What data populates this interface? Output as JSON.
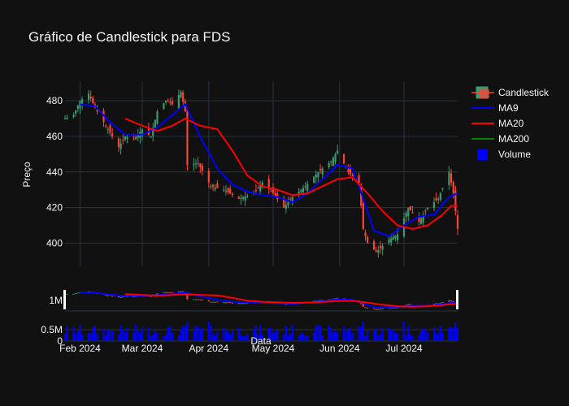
{
  "chart_data": {
    "type": "candlestick",
    "title": "Gráfico de Candlestick para FDS",
    "xlabel": "Data",
    "ylabel": "Preço",
    "ylim": [
      387,
      491
    ],
    "yticks": [
      400,
      420,
      440,
      460,
      480
    ],
    "xticks": [
      "Feb 2024",
      "Mar 2024",
      "Apr 2024",
      "May 2024",
      "Jun 2024",
      "Jul 2024"
    ],
    "x_range": [
      "2024-01-25",
      "2024-07-26"
    ],
    "volume_yticks": [
      "0",
      "0.5M",
      "1M"
    ],
    "legend": [
      "Candlestick",
      "MA9",
      "MA20",
      "MA200",
      "Volume"
    ],
    "legend_position": "top-right",
    "grid": true,
    "colors": {
      "background": "#111111",
      "grid": "#283442",
      "increasing": "#3d9970",
      "decreasing": "#ff4136",
      "ma9": "#0000ff",
      "ma20": "#ff0000",
      "ma200": "#008000",
      "volume": "#0000ff",
      "text": "#f2f5fa"
    },
    "price_anchors": [
      [
        "2024-01-25",
        470
      ],
      [
        "2024-01-29",
        472
      ],
      [
        "2024-02-01",
        480
      ],
      [
        "2024-02-05",
        484
      ],
      [
        "2024-02-08",
        476
      ],
      [
        "2024-02-12",
        468
      ],
      [
        "2024-02-15",
        462
      ],
      [
        "2024-02-19",
        454
      ],
      [
        "2024-02-22",
        460
      ],
      [
        "2024-02-26",
        458
      ],
      [
        "2024-03-01",
        464
      ],
      [
        "2024-03-05",
        460
      ],
      [
        "2024-03-08",
        474
      ],
      [
        "2024-03-12",
        480
      ],
      [
        "2024-03-15",
        478
      ],
      [
        "2024-03-19",
        485
      ],
      [
        "2024-03-21",
        474
      ],
      [
        "2024-03-22",
        444
      ],
      [
        "2024-03-27",
        445
      ],
      [
        "2024-04-02",
        432
      ],
      [
        "2024-04-08",
        430
      ],
      [
        "2024-04-15",
        425
      ],
      [
        "2024-04-22",
        428
      ],
      [
        "2024-04-26",
        434
      ],
      [
        "2024-05-01",
        428
      ],
      [
        "2024-05-06",
        420
      ],
      [
        "2024-05-10",
        426
      ],
      [
        "2024-05-16",
        432
      ],
      [
        "2024-05-22",
        440
      ],
      [
        "2024-05-28",
        446
      ],
      [
        "2024-05-31",
        452
      ],
      [
        "2024-06-05",
        440
      ],
      [
        "2024-06-10",
        434
      ],
      [
        "2024-06-12",
        408
      ],
      [
        "2024-06-14",
        400
      ],
      [
        "2024-06-18",
        395
      ],
      [
        "2024-06-24",
        402
      ],
      [
        "2024-06-28",
        405
      ],
      [
        "2024-07-03",
        420
      ],
      [
        "2024-07-08",
        412
      ],
      [
        "2024-07-12",
        420
      ],
      [
        "2024-07-17",
        425
      ],
      [
        "2024-07-22",
        440
      ],
      [
        "2024-07-24",
        428
      ],
      [
        "2024-07-26",
        408
      ]
    ],
    "ma9_anchors": [
      [
        "2024-02-01",
        478
      ],
      [
        "2024-02-08",
        477
      ],
      [
        "2024-02-15",
        468
      ],
      [
        "2024-02-22",
        461
      ],
      [
        "2024-03-01",
        461
      ],
      [
        "2024-03-08",
        465
      ],
      [
        "2024-03-15",
        472
      ],
      [
        "2024-03-21",
        478
      ],
      [
        "2024-03-28",
        460
      ],
      [
        "2024-04-05",
        442
      ],
      [
        "2024-04-12",
        433
      ],
      [
        "2024-04-19",
        429
      ],
      [
        "2024-04-26",
        427
      ],
      [
        "2024-05-03",
        426
      ],
      [
        "2024-05-10",
        423
      ],
      [
        "2024-05-17",
        428
      ],
      [
        "2024-05-24",
        436
      ],
      [
        "2024-05-31",
        444
      ],
      [
        "2024-06-07",
        442
      ],
      [
        "2024-06-12",
        425
      ],
      [
        "2024-06-17",
        407
      ],
      [
        "2024-06-24",
        404
      ],
      [
        "2024-07-01",
        410
      ],
      [
        "2024-07-08",
        415
      ],
      [
        "2024-07-15",
        416
      ],
      [
        "2024-07-22",
        426
      ],
      [
        "2024-07-26",
        428
      ]
    ],
    "ma20_anchors": [
      [
        "2024-02-22",
        470
      ],
      [
        "2024-03-01",
        466
      ],
      [
        "2024-03-08",
        463
      ],
      [
        "2024-03-15",
        466
      ],
      [
        "2024-03-21",
        470
      ],
      [
        "2024-03-28",
        466
      ],
      [
        "2024-04-05",
        464
      ],
      [
        "2024-04-12",
        452
      ],
      [
        "2024-04-19",
        438
      ],
      [
        "2024-04-26",
        432
      ],
      [
        "2024-05-03",
        430
      ],
      [
        "2024-05-10",
        427
      ],
      [
        "2024-05-17",
        428
      ],
      [
        "2024-05-24",
        432
      ],
      [
        "2024-05-31",
        436
      ],
      [
        "2024-06-07",
        437
      ],
      [
        "2024-06-14",
        428
      ],
      [
        "2024-06-21",
        418
      ],
      [
        "2024-06-28",
        410
      ],
      [
        "2024-07-05",
        408
      ],
      [
        "2024-07-12",
        410
      ],
      [
        "2024-07-19",
        416
      ],
      [
        "2024-07-23",
        421
      ],
      [
        "2024-07-26",
        421
      ]
    ]
  }
}
